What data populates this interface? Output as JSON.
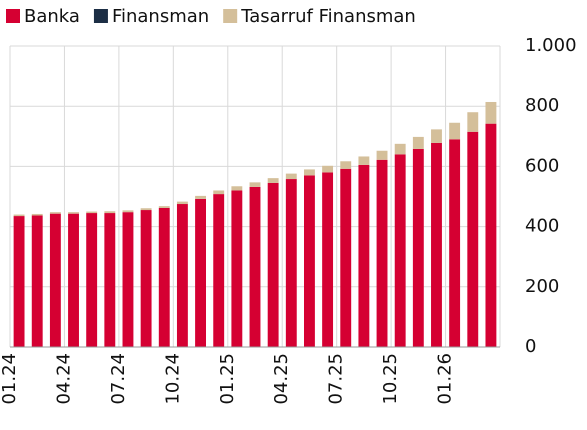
{
  "chart_data": {
    "type": "stacked_bar",
    "categories": [
      "01.24",
      null,
      null,
      "04.24",
      null,
      null,
      "07.24",
      null,
      null,
      "10.24",
      null,
      null,
      "01.25",
      null,
      null,
      "04.25",
      null,
      null,
      "07.25",
      null,
      null,
      "10.25",
      null,
      null,
      "01.26",
      null,
      null
    ],
    "series": [
      {
        "name": "Banka",
        "color": "#d50032",
        "values": [
          435,
          437,
          443,
          443,
          445,
          445,
          448,
          455,
          462,
          475,
          492,
          508,
          520,
          532,
          545,
          558,
          570,
          580,
          592,
          605,
          622,
          640,
          658,
          678,
          690,
          715,
          742
        ]
      },
      {
        "name": "Finansman",
        "color": "#1c2e45",
        "values": [
          0,
          0,
          0,
          0,
          0,
          0,
          0,
          0,
          0,
          0,
          0,
          0,
          0,
          0,
          0,
          0,
          0,
          0,
          0,
          0,
          0,
          0,
          0,
          0,
          0,
          0,
          0
        ]
      },
      {
        "name": "Tasarruf Finansman",
        "color": "#d4bf9a",
        "values": [
          5,
          5,
          5,
          5,
          5,
          6,
          6,
          6,
          6,
          8,
          10,
          12,
          14,
          15,
          16,
          18,
          20,
          22,
          25,
          28,
          30,
          35,
          40,
          45,
          55,
          65,
          72
        ]
      }
    ],
    "ylim": [
      0,
      1000
    ],
    "yticks": [
      0,
      200,
      400,
      600,
      800,
      {
        "value": 1000,
        "label": "1.000"
      }
    ],
    "grid": true,
    "legend": "top-left"
  }
}
